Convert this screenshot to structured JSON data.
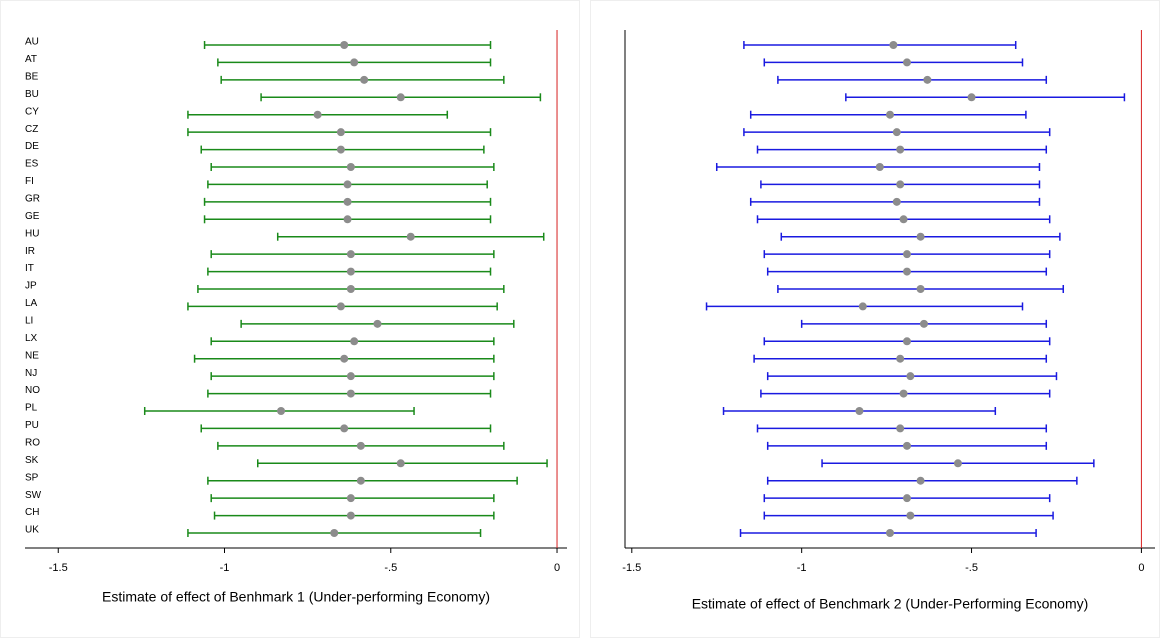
{
  "chart_data": [
    {
      "type": "errorbar",
      "color": "#1a8a1a",
      "marker_color": "#8c8c8c",
      "refline": 0,
      "refline_color": "#d62020",
      "xlabel": "Estimate of effect of Benhmark 1 (Under-performing Economy)",
      "categories": [
        "AU",
        "AT",
        "BE",
        "BU",
        "CY",
        "CZ",
        "DE",
        "ES",
        "FI",
        "GR",
        "GE",
        "HU",
        "IR",
        "IT",
        "JP",
        "LA",
        "LI",
        "LX",
        "NE",
        "NJ",
        "NO",
        "PL",
        "PU",
        "RO",
        "SK",
        "SP",
        "SW",
        "CH",
        "UK"
      ],
      "values": [
        -0.64,
        -0.61,
        -0.58,
        -0.47,
        -0.72,
        -0.65,
        -0.65,
        -0.62,
        -0.63,
        -0.63,
        -0.63,
        -0.44,
        -0.62,
        -0.62,
        -0.62,
        -0.65,
        -0.54,
        -0.61,
        -0.64,
        -0.62,
        -0.62,
        -0.83,
        -0.64,
        -0.59,
        -0.47,
        -0.59,
        -0.62,
        -0.62,
        -0.67
      ],
      "lower": [
        -1.06,
        -1.02,
        -1.01,
        -0.89,
        -1.11,
        -1.11,
        -1.07,
        -1.04,
        -1.05,
        -1.06,
        -1.06,
        -0.84,
        -1.04,
        -1.05,
        -1.08,
        -1.11,
        -0.95,
        -1.04,
        -1.09,
        -1.04,
        -1.05,
        -1.24,
        -1.07,
        -1.02,
        -0.9,
        -1.05,
        -1.04,
        -1.03,
        -1.11
      ],
      "upper": [
        -0.2,
        -0.2,
        -0.16,
        -0.05,
        -0.33,
        -0.2,
        -0.22,
        -0.19,
        -0.21,
        -0.2,
        -0.2,
        -0.04,
        -0.19,
        -0.2,
        -0.16,
        -0.18,
        -0.13,
        -0.19,
        -0.19,
        -0.19,
        -0.2,
        -0.43,
        -0.2,
        -0.16,
        -0.03,
        -0.12,
        -0.19,
        -0.19,
        -0.23
      ],
      "xlim": [
        -1.6,
        0.03
      ],
      "xticks": [
        -1.5,
        -1,
        {
          "value": -0.5,
          "label": "-.5"
        },
        0
      ]
    },
    {
      "type": "errorbar",
      "color": "#1a1ae0",
      "marker_color": "#8c8c8c",
      "refline": 0,
      "refline_color": "#d62020",
      "xlabel": "Estimate of effect of Benchmark 2 (Under-Performing Economy)",
      "values": [
        -0.73,
        -0.69,
        -0.63,
        -0.5,
        -0.74,
        -0.72,
        -0.71,
        -0.77,
        -0.71,
        -0.72,
        -0.7,
        -0.65,
        -0.69,
        -0.69,
        -0.65,
        -0.82,
        -0.64,
        -0.69,
        -0.71,
        -0.68,
        -0.7,
        -0.83,
        -0.71,
        -0.69,
        -0.54,
        -0.65,
        -0.69,
        -0.68,
        -0.74
      ],
      "lower": [
        -1.17,
        -1.11,
        -1.07,
        -0.87,
        -1.15,
        -1.17,
        -1.13,
        -1.25,
        -1.12,
        -1.15,
        -1.13,
        -1.06,
        -1.11,
        -1.1,
        -1.07,
        -1.28,
        -1.0,
        -1.11,
        -1.14,
        -1.1,
        -1.12,
        -1.23,
        -1.13,
        -1.1,
        -0.94,
        -1.1,
        -1.11,
        -1.11,
        -1.18
      ],
      "upper": [
        -0.37,
        -0.35,
        -0.28,
        -0.05,
        -0.34,
        -0.27,
        -0.28,
        -0.3,
        -0.3,
        -0.3,
        -0.27,
        -0.24,
        -0.27,
        -0.28,
        -0.23,
        -0.35,
        -0.28,
        -0.27,
        -0.28,
        -0.25,
        -0.27,
        -0.43,
        -0.28,
        -0.28,
        -0.14,
        -0.19,
        -0.27,
        -0.26,
        -0.31
      ],
      "xlim": [
        -1.52,
        0.04
      ],
      "xticks": [
        -1.5,
        -1,
        {
          "value": -0.5,
          "label": "-.5"
        },
        0
      ],
      "yaxis_line": true
    }
  ]
}
